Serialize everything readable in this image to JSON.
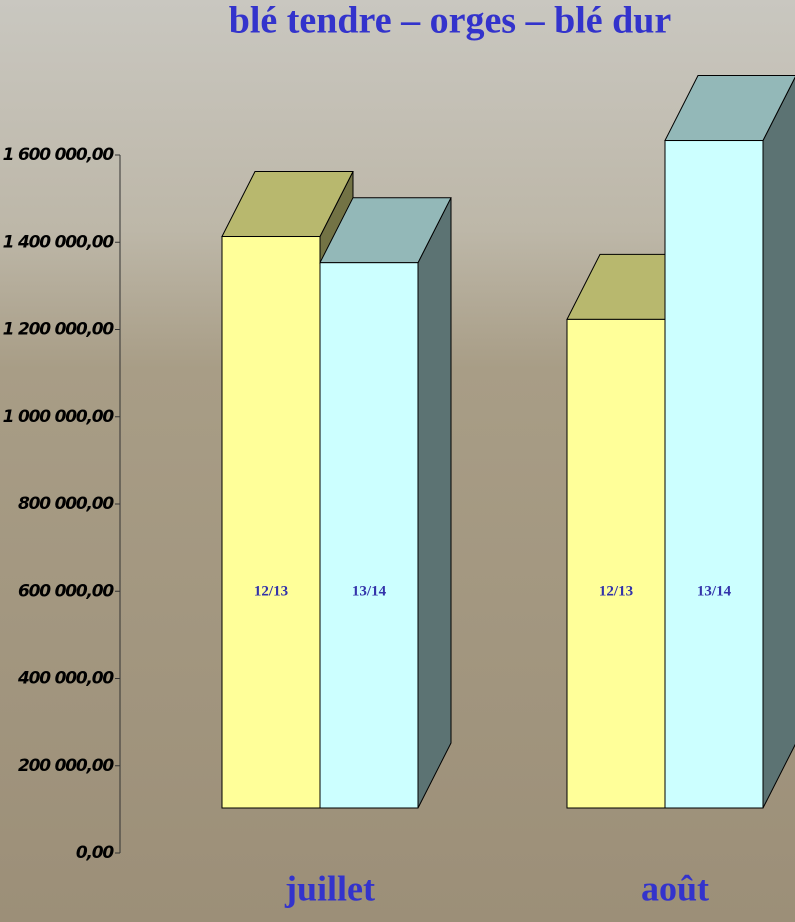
{
  "chart_data": {
    "type": "bar3d",
    "title": "blé tendre – orges – blé dur",
    "categories": [
      "juillet",
      "août"
    ],
    "series": [
      {
        "name": "12/13",
        "color": "#ffff99",
        "values": [
          1310000,
          1120000
        ]
      },
      {
        "name": "13/14",
        "color": "#ccffff",
        "values": [
          1250000,
          1530000
        ]
      }
    ],
    "ylim": [
      0,
      1600000
    ],
    "yticks": [
      {
        "value": 0,
        "label": "0,00"
      },
      {
        "value": 200000,
        "label": "200 000,00"
      },
      {
        "value": 400000,
        "label": "400 000,00"
      },
      {
        "value": 600000,
        "label": "600 000,00"
      },
      {
        "value": 800000,
        "label": "800 000,00"
      },
      {
        "value": 1000000,
        "label": "1 000 000,00"
      },
      {
        "value": 1200000,
        "label": "1 200 000,00"
      },
      {
        "value": 1400000,
        "label": "1 400 000,00"
      },
      {
        "value": 1600000,
        "label": "1 600 000,00"
      }
    ]
  }
}
